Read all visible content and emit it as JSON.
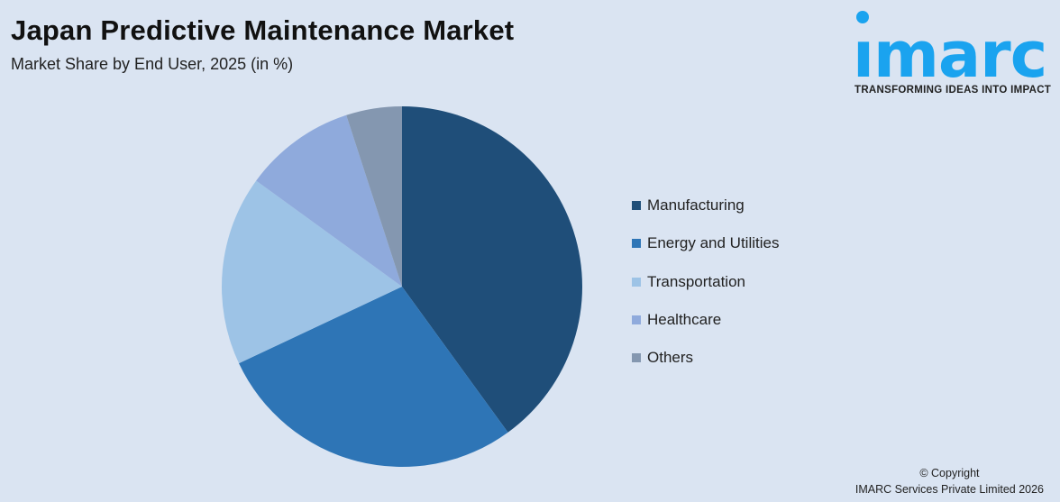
{
  "header": {
    "title": "Japan Predictive Maintenance Market",
    "subtitle": "Market Share by End User, 2025 (in %)"
  },
  "logo": {
    "word": "ımarc",
    "tagline": "TRANSFORMING IDEAS INTO IMPACT",
    "color": "#1aa3ef"
  },
  "legend": {
    "items": [
      {
        "label": "Manufacturing",
        "color": "#1f4e79"
      },
      {
        "label": "Energy and Utilities",
        "color": "#2e75b6"
      },
      {
        "label": "Transportation",
        "color": "#9dc3e6"
      },
      {
        "label": "Healthcare",
        "color": "#8faadc"
      },
      {
        "label": "Others",
        "color": "#8497b0"
      }
    ]
  },
  "footer": {
    "line1": "© Copyright",
    "line2": "IMARC Services Private Limited 2026"
  },
  "chart_data": {
    "type": "pie",
    "title": "Japan Predictive Maintenance Market",
    "subtitle": "Market Share by End User, 2025 (in %)",
    "categories": [
      "Manufacturing",
      "Energy and Utilities",
      "Transportation",
      "Healthcare",
      "Others"
    ],
    "values": [
      40,
      28,
      17,
      10,
      5
    ],
    "colors": [
      "#1f4e79",
      "#2e75b6",
      "#9dc3e6",
      "#8faadc",
      "#8497b0"
    ],
    "start_angle": "12 o'clock, clockwise",
    "legend_position": "right",
    "data_labels": false
  }
}
